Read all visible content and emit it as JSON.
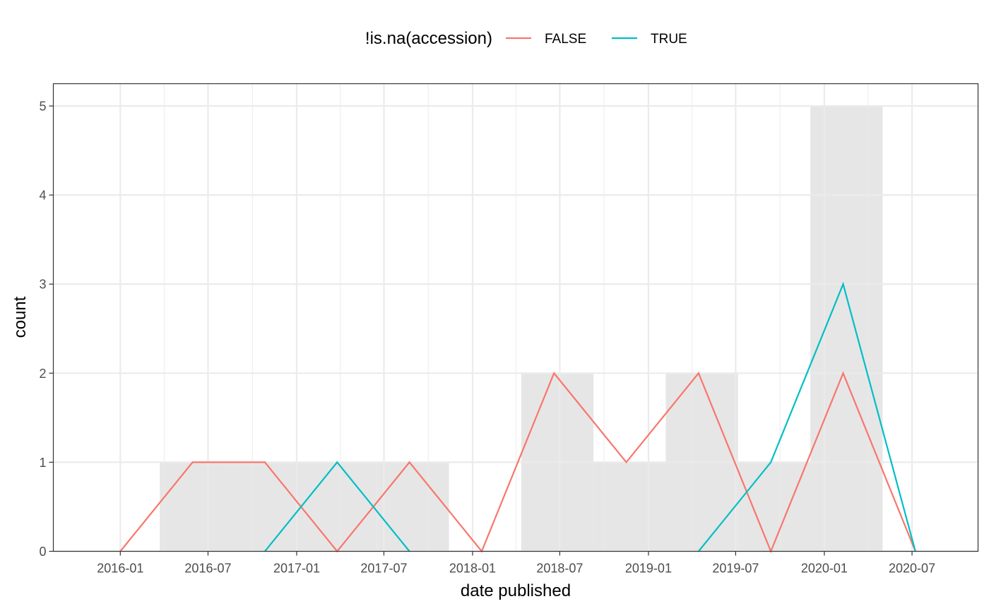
{
  "chart_data": {
    "type": "line",
    "xlabel": "date published",
    "ylabel": "count",
    "ylim": [
      0,
      5.25
    ],
    "xlim": [
      "2015-08-15",
      "2020-11-15"
    ],
    "y_ticks": [
      "0",
      "1",
      "2",
      "3",
      "4",
      "5"
    ],
    "x_ticks": [
      "2016-01",
      "2016-07",
      "2017-01",
      "2017-07",
      "2018-01",
      "2018-07",
      "2019-01",
      "2019-07",
      "2020-01",
      "2020-07"
    ],
    "grid": true,
    "legend": {
      "title": "!is.na(accession)",
      "position": "top"
    },
    "histogram": {
      "fill": "#e6e6e6",
      "bins": [
        {
          "start": "2015-10-23",
          "end": "2016-03-23",
          "count": 0
        },
        {
          "start": "2016-03-23",
          "end": "2016-08-20",
          "count": 1
        },
        {
          "start": "2016-08-20",
          "end": "2017-01-17",
          "count": 1
        },
        {
          "start": "2017-01-17",
          "end": "2017-06-16",
          "count": 1
        },
        {
          "start": "2017-06-16",
          "end": "2017-11-13",
          "count": 1
        },
        {
          "start": "2017-11-13",
          "end": "2018-04-12",
          "count": 0
        },
        {
          "start": "2018-04-12",
          "end": "2018-09-09",
          "count": 2
        },
        {
          "start": "2018-09-09",
          "end": "2019-02-06",
          "count": 1
        },
        {
          "start": "2019-02-06",
          "end": "2019-07-06",
          "count": 2
        },
        {
          "start": "2019-07-06",
          "end": "2019-12-03",
          "count": 1
        },
        {
          "start": "2019-12-03",
          "end": "2020-05-01",
          "count": 5
        },
        {
          "start": "2020-05-01",
          "end": "2020-09-28",
          "count": 0
        }
      ]
    },
    "x": [
      "2016-01-01",
      "2016-05-30",
      "2016-10-27",
      "2017-03-26",
      "2017-08-23",
      "2018-01-20",
      "2018-06-19",
      "2018-11-16",
      "2019-04-15",
      "2019-09-12",
      "2020-02-09",
      "2020-07-08"
    ],
    "series": [
      {
        "name": "FALSE",
        "color": "#f8766d",
        "values": [
          0,
          1,
          1,
          0,
          1,
          0,
          2,
          1,
          2,
          0,
          2,
          0
        ]
      },
      {
        "name": "TRUE",
        "color": "#00bfc4",
        "values": [
          null,
          null,
          0,
          1,
          0,
          null,
          null,
          null,
          0,
          1,
          3,
          0
        ]
      }
    ]
  }
}
